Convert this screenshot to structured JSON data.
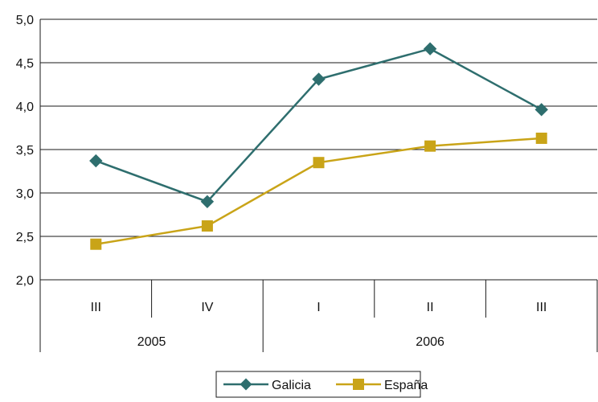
{
  "chart_data": {
    "type": "line",
    "categories": [
      "III",
      "IV",
      "I",
      "II",
      "III"
    ],
    "category_groups": [
      {
        "label": "2005",
        "span": [
          0,
          1
        ]
      },
      {
        "label": "2006",
        "span": [
          2,
          4
        ]
      }
    ],
    "series": [
      {
        "name": "Galicia",
        "values": [
          3.37,
          2.9,
          4.31,
          4.66,
          3.96
        ],
        "color": "#2e6e6e",
        "marker": "diamond"
      },
      {
        "name": "España",
        "values": [
          2.41,
          2.62,
          3.35,
          3.54,
          3.63
        ],
        "color": "#c9a418",
        "marker": "square"
      }
    ],
    "y_ticks": [
      "2,0",
      "2,5",
      "3,0",
      "3,5",
      "4,0",
      "4,5",
      "5,0"
    ],
    "ylim": [
      2.0,
      5.0
    ],
    "title": "",
    "xlabel": "",
    "ylabel": "",
    "grid": true,
    "legend_position": "bottom-center"
  }
}
